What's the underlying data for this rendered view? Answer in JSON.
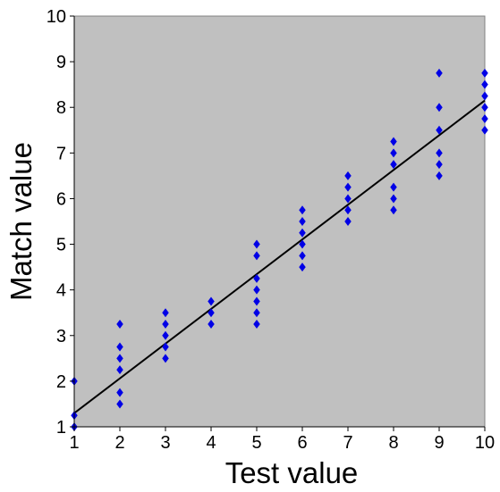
{
  "chart_data": {
    "type": "scatter",
    "title": "",
    "xlabel": "Test value",
    "ylabel": "Match value",
    "xlim": [
      1,
      10
    ],
    "ylim": [
      1,
      10
    ],
    "x_ticks": [
      "1",
      "2",
      "3",
      "4",
      "5",
      "6",
      "7",
      "8",
      "9",
      "10"
    ],
    "y_ticks": [
      "1",
      "2",
      "3",
      "4",
      "5",
      "6",
      "7",
      "8",
      "9",
      "10"
    ],
    "grid": false,
    "legend": "none",
    "series": [
      {
        "marker": "diamond",
        "color": "#0000e6",
        "points": [
          [
            1,
            1.0
          ],
          [
            1,
            1.25
          ],
          [
            1,
            2.0
          ],
          [
            2,
            1.5
          ],
          [
            2,
            1.75
          ],
          [
            2,
            2.25
          ],
          [
            2,
            2.5
          ],
          [
            2,
            2.75
          ],
          [
            2,
            3.25
          ],
          [
            3,
            2.5
          ],
          [
            3,
            2.75
          ],
          [
            3,
            3.0
          ],
          [
            3,
            3.25
          ],
          [
            3,
            3.5
          ],
          [
            4,
            3.25
          ],
          [
            4,
            3.5
          ],
          [
            4,
            3.75
          ],
          [
            5,
            3.25
          ],
          [
            5,
            3.5
          ],
          [
            5,
            3.75
          ],
          [
            5,
            4.0
          ],
          [
            5,
            4.25
          ],
          [
            5,
            4.75
          ],
          [
            5,
            5.0
          ],
          [
            6,
            4.5
          ],
          [
            6,
            4.75
          ],
          [
            6,
            5.0
          ],
          [
            6,
            5.25
          ],
          [
            6,
            5.5
          ],
          [
            6,
            5.75
          ],
          [
            7,
            5.5
          ],
          [
            7,
            5.75
          ],
          [
            7,
            6.0
          ],
          [
            7,
            6.25
          ],
          [
            7,
            6.5
          ],
          [
            8,
            5.75
          ],
          [
            8,
            6.0
          ],
          [
            8,
            6.25
          ],
          [
            8,
            6.75
          ],
          [
            8,
            7.0
          ],
          [
            8,
            7.25
          ],
          [
            9,
            6.5
          ],
          [
            9,
            6.75
          ],
          [
            9,
            7.0
          ],
          [
            9,
            7.5
          ],
          [
            9,
            8.0
          ],
          [
            9,
            8.75
          ],
          [
            10,
            7.5
          ],
          [
            10,
            7.75
          ],
          [
            10,
            8.0
          ],
          [
            10,
            8.25
          ],
          [
            10,
            8.5
          ],
          [
            10,
            8.75
          ]
        ]
      }
    ],
    "trendline": {
      "type": "linear",
      "color": "#000000",
      "from": [
        1,
        1.3
      ],
      "to": [
        10,
        8.15
      ]
    },
    "colors": {
      "plot_background": "#c0c0c0",
      "page_background": "#ffffff",
      "axis": "#000000"
    }
  }
}
